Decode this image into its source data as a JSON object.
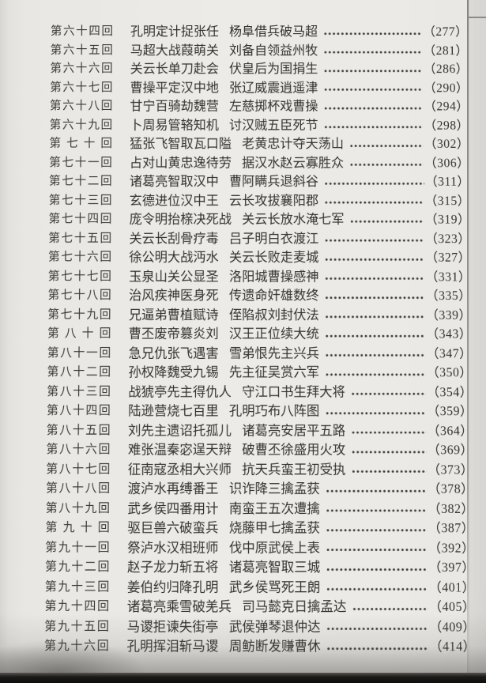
{
  "colors": {
    "paper": "#eceae6",
    "ink": "#333230",
    "page_edge_strip": "#d7d5d1",
    "bottom_dark_strip": "#0e0d0c"
  },
  "toc": {
    "rows": [
      {
        "chapter": "第六十四回",
        "title1": "孔明定计捉张任",
        "title2": "杨阜借兵破马超",
        "page": "（277）"
      },
      {
        "chapter": "第六十五回",
        "title1": "马超大战葭萌关",
        "title2": "刘备自领益州牧",
        "page": "（281）"
      },
      {
        "chapter": "第六十六回",
        "title1": "关云长单刀赴会",
        "title2": "伏皇后为国捐生",
        "page": "（286）"
      },
      {
        "chapter": "第六十七回",
        "title1": "曹操平定汉中地",
        "title2": "张辽威震逍遥津",
        "page": "（290）"
      },
      {
        "chapter": "第六十八回",
        "title1": "甘宁百骑劫魏营",
        "title2": "左慈掷杯戏曹操",
        "page": "（294）"
      },
      {
        "chapter": "第六十九回",
        "title1": "卜周易管辂知机",
        "title2": "讨汉贼五臣死节",
        "page": "（298）"
      },
      {
        "chapter": "第七十回",
        "title1": "猛张飞智取瓦口隘",
        "title2": "老黄忠计夺天荡山",
        "page": "（302）"
      },
      {
        "chapter": "第七十一回",
        "title1": "占对山黄忠逸待劳",
        "title2": "据汉水赵云寡胜众",
        "page": "（306）"
      },
      {
        "chapter": "第七十二回",
        "title1": "诸葛亮智取汉中",
        "title2": "曹阿瞒兵退斜谷",
        "page": "（311）"
      },
      {
        "chapter": "第七十三回",
        "title1": "玄德进位汉中王",
        "title2": "云长攻拔襄阳郡",
        "page": "（315）"
      },
      {
        "chapter": "第七十四回",
        "title1": "庞令明抬榇决死战",
        "title2": "关云长放水淹七军",
        "page": "（319）"
      },
      {
        "chapter": "第七十五回",
        "title1": "关云长刮骨疗毒",
        "title2": "吕子明白衣渡江",
        "page": "（323）"
      },
      {
        "chapter": "第七十六回",
        "title1": "徐公明大战沔水",
        "title2": "关云长败走麦城",
        "page": "（327）"
      },
      {
        "chapter": "第七十七回",
        "title1": "玉泉山关公显圣",
        "title2": "洛阳城曹操感神",
        "page": "（331）"
      },
      {
        "chapter": "第七十八回",
        "title1": "治风疾神医身死",
        "title2": "传遗命奸雄数终",
        "page": "（335）"
      },
      {
        "chapter": "第七十九回",
        "title1": "兄逼弟曹植赋诗",
        "title2": "侄陷叔刘封伏法",
        "page": "（339）"
      },
      {
        "chapter": "第八十回",
        "title1": "曹丕废帝篡炎刘",
        "title2": "汉王正位续大统",
        "page": "（343）"
      },
      {
        "chapter": "第八十一回",
        "title1": "急兄仇张飞遇害",
        "title2": "雪弟恨先主兴兵",
        "page": "（347）"
      },
      {
        "chapter": "第八十二回",
        "title1": "孙权降魏受九锡",
        "title2": "先主征吴赏六军",
        "page": "（350）"
      },
      {
        "chapter": "第八十三回",
        "title1": "战猇亭先主得仇人",
        "title2": "守江口书生拜大将",
        "page": "（354）"
      },
      {
        "chapter": "第八十四回",
        "title1": "陆逊营烧七百里",
        "title2": "孔明巧布八阵图",
        "page": "（359）"
      },
      {
        "chapter": "第八十五回",
        "title1": "刘先主遗诏托孤儿",
        "title2": "诸葛亮安居平五路",
        "page": "（364）"
      },
      {
        "chapter": "第八十六回",
        "title1": "难张温秦宓逞天辩",
        "title2": "破曹丕徐盛用火攻",
        "page": "（369）"
      },
      {
        "chapter": "第八十七回",
        "title1": "征南寇丞相大兴师",
        "title2": "抗天兵蛮王初受执",
        "page": "（373）"
      },
      {
        "chapter": "第八十八回",
        "title1": "渡泸水再缚番王",
        "title2": "识诈降三擒孟获",
        "page": "（378）"
      },
      {
        "chapter": "第八十九回",
        "title1": "武乡侯四番用计",
        "title2": "南蛮王五次遭擒",
        "page": "（382）"
      },
      {
        "chapter": "第九十回",
        "title1": "驱巨兽六破蛮兵",
        "title2": "烧藤甲七擒孟获",
        "page": "（387）"
      },
      {
        "chapter": "第九十一回",
        "title1": "祭泸水汉相班师",
        "title2": "伐中原武侯上表",
        "page": "（392）"
      },
      {
        "chapter": "第九十二回",
        "title1": "赵子龙力斩五将",
        "title2": "诸葛亮智取三城",
        "page": "（397）"
      },
      {
        "chapter": "第九十三回",
        "title1": "姜伯约归降孔明",
        "title2": "武乡侯骂死王朗",
        "page": "（401）"
      },
      {
        "chapter": "第九十四回",
        "title1": "诸葛亮乘雪破羌兵",
        "title2": "司马懿克日擒孟达",
        "page": "（405）"
      },
      {
        "chapter": "第九十五回",
        "title1": "马谡拒谏失街亭",
        "title2": "武侯弹琴退仲达",
        "page": "（409）"
      },
      {
        "chapter": "第九十六回",
        "title1": "孔明挥泪斩马谡",
        "title2": "周鲂断发赚曹休",
        "page": "（414）"
      }
    ]
  }
}
